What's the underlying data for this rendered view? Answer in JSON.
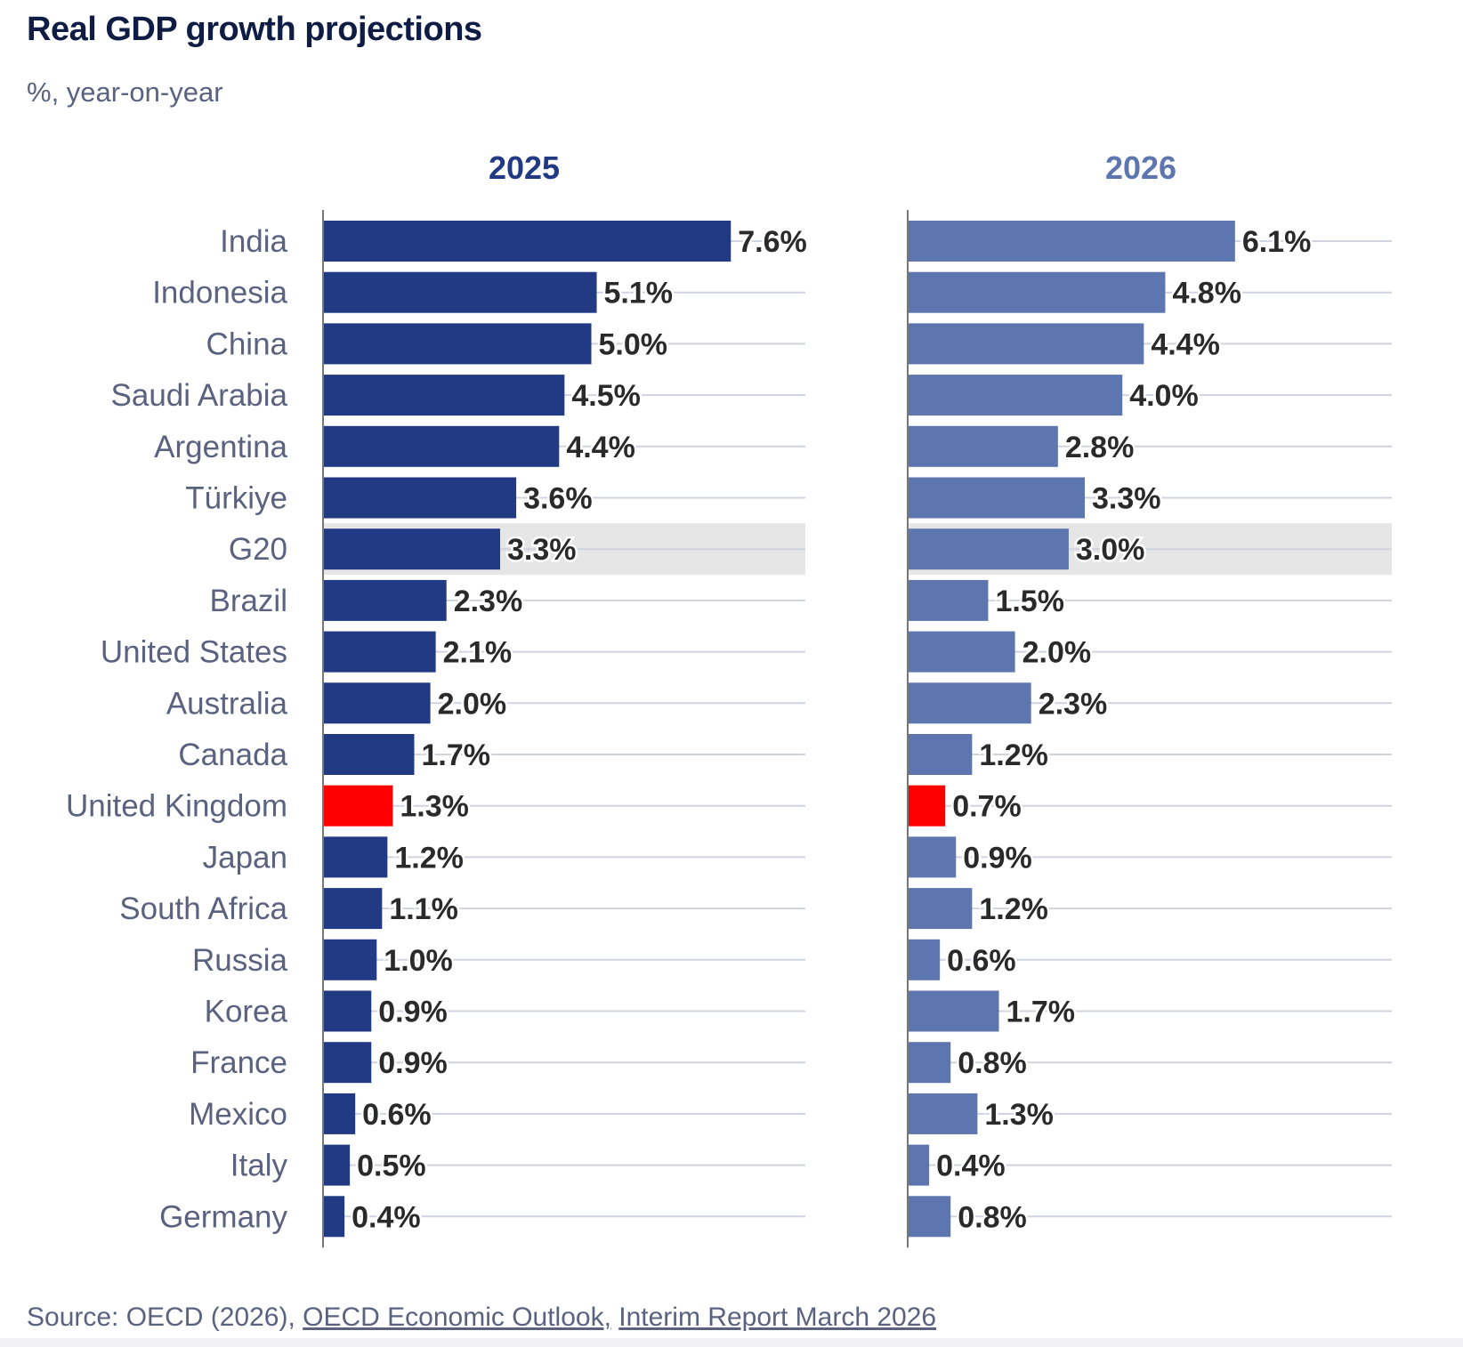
{
  "title": "Real GDP growth projections",
  "subtitle": "%, year-on-year",
  "source": {
    "prefix": "Source: OECD (2026), ",
    "link1": "OECD Economic Outlook,",
    "link2": "Interim Report March 2026"
  },
  "chart_data": {
    "type": "bar",
    "orientation": "horizontal",
    "categories": [
      "India",
      "Indonesia",
      "China",
      "Saudi Arabia",
      "Argentina",
      "Türkiye",
      "G20",
      "Brazil",
      "United States",
      "Australia",
      "Canada",
      "United Kingdom",
      "Japan",
      "South Africa",
      "Russia",
      "Korea",
      "France",
      "Mexico",
      "Italy",
      "Germany"
    ],
    "highlight_band": "G20",
    "highlight_bar": "United Kingdom",
    "value_suffix": "%",
    "grid": true,
    "series": [
      {
        "name": "2025",
        "color": "#223a84",
        "values": [
          7.6,
          5.1,
          5.0,
          4.5,
          4.4,
          3.6,
          3.3,
          2.3,
          2.1,
          2.0,
          1.7,
          1.3,
          1.2,
          1.1,
          1.0,
          0.9,
          0.9,
          0.6,
          0.5,
          0.4
        ]
      },
      {
        "name": "2026",
        "color": "#5e76b0",
        "values": [
          6.1,
          4.8,
          4.4,
          4.0,
          2.8,
          3.3,
          3.0,
          1.5,
          2.0,
          2.3,
          1.2,
          0.7,
          0.9,
          1.2,
          0.6,
          1.7,
          0.8,
          1.3,
          0.4,
          0.8
        ]
      }
    ],
    "highlight_color": "#ff0000",
    "band_color": "#e6e6e6"
  }
}
